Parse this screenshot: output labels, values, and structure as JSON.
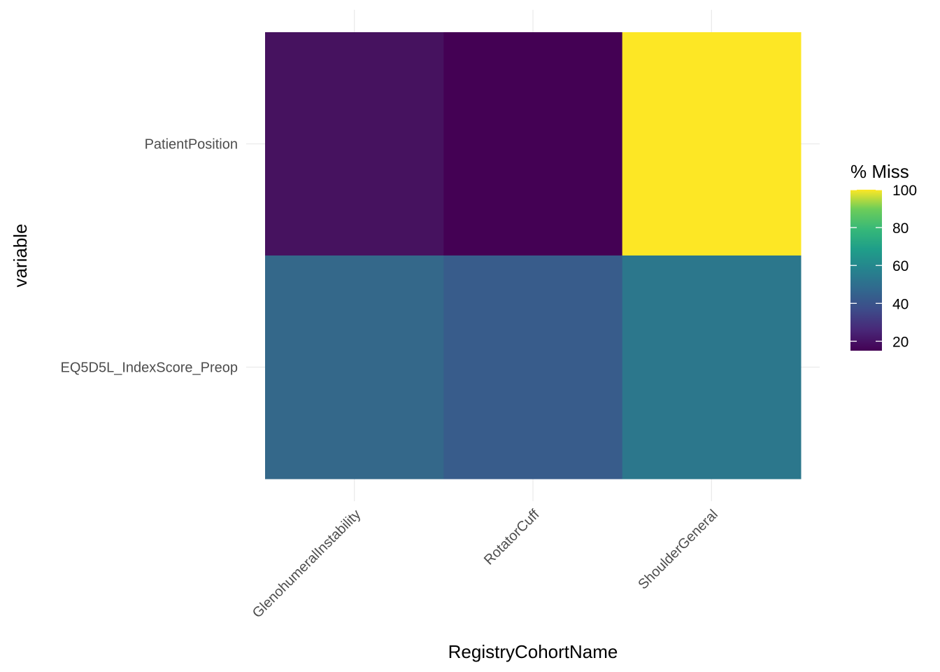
{
  "chart_data": {
    "type": "heatmap",
    "title": "",
    "xlabel": "RegistryCohortName",
    "ylabel": "variable",
    "x_categories": [
      "GlenohumeralInstability",
      "RotatorCuff",
      "ShoulderGeneral"
    ],
    "y_categories": [
      "EQ5D5L_IndexScore_Preop",
      "PatientPosition"
    ],
    "cells": [
      {
        "x": "GlenohumeralInstability",
        "y": "PatientPosition",
        "value": 20.5,
        "color": "#46125F"
      },
      {
        "x": "RotatorCuff",
        "y": "PatientPosition",
        "value": 15,
        "color": "#440154"
      },
      {
        "x": "ShoulderGeneral",
        "y": "PatientPosition",
        "value": 100,
        "color": "#FDE725"
      },
      {
        "x": "GlenohumeralInstability",
        "y": "EQ5D5L_IndexScore_Preop",
        "value": 47,
        "color": "#34688A"
      },
      {
        "x": "RotatorCuff",
        "y": "EQ5D5L_IndexScore_Preop",
        "value": 41,
        "color": "#385C8B"
      },
      {
        "x": "ShoulderGeneral",
        "y": "EQ5D5L_IndexScore_Preop",
        "value": 54,
        "color": "#2C778C"
      }
    ],
    "legend": {
      "title": "% Miss",
      "min": 15,
      "max": 100,
      "ticks": [
        20,
        40,
        60,
        80,
        100
      ],
      "placement": "right"
    },
    "grid": true,
    "colormap": "viridis"
  }
}
